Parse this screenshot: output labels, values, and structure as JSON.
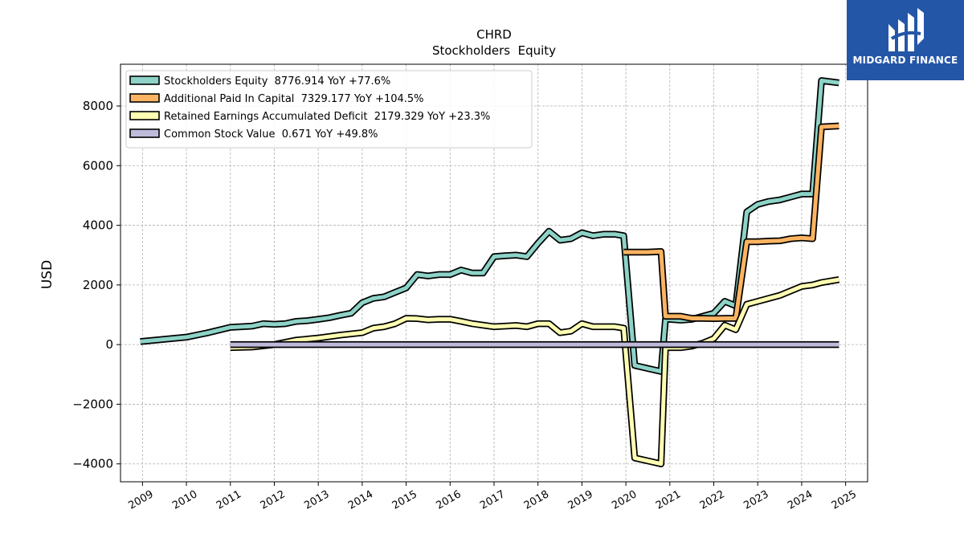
{
  "chart_data": {
    "type": "line",
    "title": "CHRD",
    "subtitle": "Stockholders  Equity",
    "ylabel": "USD",
    "xlabel": "",
    "xlim": [
      2008.5,
      2025.5
    ],
    "ylim": [
      -4600,
      9400
    ],
    "x_ticks": [
      "2009",
      "2010",
      "2011",
      "2012",
      "2013",
      "2014",
      "2015",
      "2016",
      "2017",
      "2018",
      "2019",
      "2020",
      "2021",
      "2022",
      "2023",
      "2024",
      "2025"
    ],
    "y_ticks": [
      -4000,
      -2000,
      0,
      2000,
      4000,
      6000,
      8000
    ],
    "y_tick_labels": [
      "−4000",
      "−2000",
      "0",
      "2000",
      "4000",
      "6000",
      "8000"
    ],
    "grid": true,
    "legend_position": "top-left",
    "series": [
      {
        "name": "Stockholders Equity",
        "legend": "Stockholders Equity  8776.914 YoY +77.6%",
        "color": "#8dd3c7",
        "points": [
          [
            2008.95,
            100
          ],
          [
            2010.0,
            250
          ],
          [
            2010.5,
            400
          ],
          [
            2011.0,
            580
          ],
          [
            2011.5,
            620
          ],
          [
            2011.75,
            700
          ],
          [
            2012.0,
            680
          ],
          [
            2012.25,
            700
          ],
          [
            2012.5,
            780
          ],
          [
            2012.75,
            800
          ],
          [
            2013.0,
            850
          ],
          [
            2013.25,
            900
          ],
          [
            2013.5,
            980
          ],
          [
            2013.75,
            1050
          ],
          [
            2014.0,
            1400
          ],
          [
            2014.25,
            1550
          ],
          [
            2014.5,
            1600
          ],
          [
            2014.75,
            1750
          ],
          [
            2015.0,
            1900
          ],
          [
            2015.25,
            2350
          ],
          [
            2015.5,
            2300
          ],
          [
            2015.75,
            2350
          ],
          [
            2016.0,
            2350
          ],
          [
            2016.25,
            2500
          ],
          [
            2016.5,
            2400
          ],
          [
            2016.75,
            2400
          ],
          [
            2017.0,
            2950
          ],
          [
            2017.25,
            2980
          ],
          [
            2017.5,
            3000
          ],
          [
            2017.75,
            2950
          ],
          [
            2018.0,
            3400
          ],
          [
            2018.25,
            3800
          ],
          [
            2018.5,
            3500
          ],
          [
            2018.75,
            3550
          ],
          [
            2019.0,
            3750
          ],
          [
            2019.25,
            3650
          ],
          [
            2019.5,
            3700
          ],
          [
            2019.75,
            3700
          ],
          [
            2019.95,
            3650
          ],
          [
            2020.2,
            -700
          ],
          [
            2020.5,
            -800
          ],
          [
            2020.8,
            -900
          ],
          [
            2020.9,
            850
          ],
          [
            2021.0,
            850
          ],
          [
            2021.25,
            820
          ],
          [
            2021.5,
            850
          ],
          [
            2021.75,
            950
          ],
          [
            2022.0,
            1050
          ],
          [
            2022.25,
            1450
          ],
          [
            2022.5,
            1300
          ],
          [
            2022.75,
            4450
          ],
          [
            2023.0,
            4700
          ],
          [
            2023.25,
            4800
          ],
          [
            2023.5,
            4850
          ],
          [
            2023.75,
            4950
          ],
          [
            2024.0,
            5050
          ],
          [
            2024.25,
            5050
          ],
          [
            2024.45,
            8850
          ],
          [
            2024.85,
            8776.914
          ]
        ]
      },
      {
        "name": "Additional Paid In Capital",
        "legend": "Additional Paid In Capital  7329.177 YoY +104.5%",
        "color": "#fdb462",
        "points": [
          [
            2019.95,
            3100
          ],
          [
            2020.5,
            3100
          ],
          [
            2020.8,
            3120
          ],
          [
            2020.9,
            950
          ],
          [
            2021.25,
            950
          ],
          [
            2021.5,
            880
          ],
          [
            2021.75,
            880
          ],
          [
            2022.0,
            870
          ],
          [
            2022.25,
            880
          ],
          [
            2022.5,
            880
          ],
          [
            2022.75,
            3450
          ],
          [
            2023.0,
            3450
          ],
          [
            2023.25,
            3470
          ],
          [
            2023.5,
            3480
          ],
          [
            2023.75,
            3550
          ],
          [
            2024.0,
            3580
          ],
          [
            2024.25,
            3550
          ],
          [
            2024.45,
            7300
          ],
          [
            2024.85,
            7329.177
          ]
        ]
      },
      {
        "name": "Retained Earnings Accumulated Deficit",
        "legend": "Retained Earnings Accumulated Deficit  2179.329 YoY +23.3%",
        "color": "#ffffb3",
        "points": [
          [
            2011.0,
            -100
          ],
          [
            2011.5,
            -80
          ],
          [
            2012.0,
            0
          ],
          [
            2012.5,
            150
          ],
          [
            2013.0,
            220
          ],
          [
            2013.5,
            320
          ],
          [
            2014.0,
            400
          ],
          [
            2014.25,
            550
          ],
          [
            2014.5,
            600
          ],
          [
            2014.75,
            700
          ],
          [
            2015.0,
            880
          ],
          [
            2015.25,
            870
          ],
          [
            2015.5,
            830
          ],
          [
            2015.75,
            850
          ],
          [
            2016.0,
            850
          ],
          [
            2016.25,
            780
          ],
          [
            2016.5,
            700
          ],
          [
            2016.75,
            650
          ],
          [
            2017.0,
            600
          ],
          [
            2017.5,
            640
          ],
          [
            2017.75,
            600
          ],
          [
            2018.0,
            700
          ],
          [
            2018.25,
            700
          ],
          [
            2018.5,
            400
          ],
          [
            2018.75,
            450
          ],
          [
            2019.0,
            700
          ],
          [
            2019.25,
            600
          ],
          [
            2019.5,
            600
          ],
          [
            2019.75,
            600
          ],
          [
            2019.95,
            550
          ],
          [
            2020.2,
            -3800
          ],
          [
            2020.5,
            -3900
          ],
          [
            2020.8,
            -4000
          ],
          [
            2020.9,
            -100
          ],
          [
            2021.25,
            -100
          ],
          [
            2021.5,
            -50
          ],
          [
            2021.75,
            50
          ],
          [
            2022.0,
            200
          ],
          [
            2022.25,
            650
          ],
          [
            2022.5,
            500
          ],
          [
            2022.75,
            1350
          ],
          [
            2023.0,
            1450
          ],
          [
            2023.25,
            1550
          ],
          [
            2023.5,
            1650
          ],
          [
            2023.75,
            1800
          ],
          [
            2024.0,
            1950
          ],
          [
            2024.25,
            2000
          ],
          [
            2024.45,
            2080
          ],
          [
            2024.85,
            2179.329
          ]
        ]
      },
      {
        "name": "Common Stock Value",
        "legend": "Common Stock Value  0.671 YoY +49.8%",
        "color": "#bebada",
        "points": [
          [
            2011.0,
            0
          ],
          [
            2024.85,
            0.671
          ]
        ]
      }
    ]
  },
  "logo": {
    "brand": "MIDGARD FINANCE",
    "brand_color": "#2456a8"
  }
}
